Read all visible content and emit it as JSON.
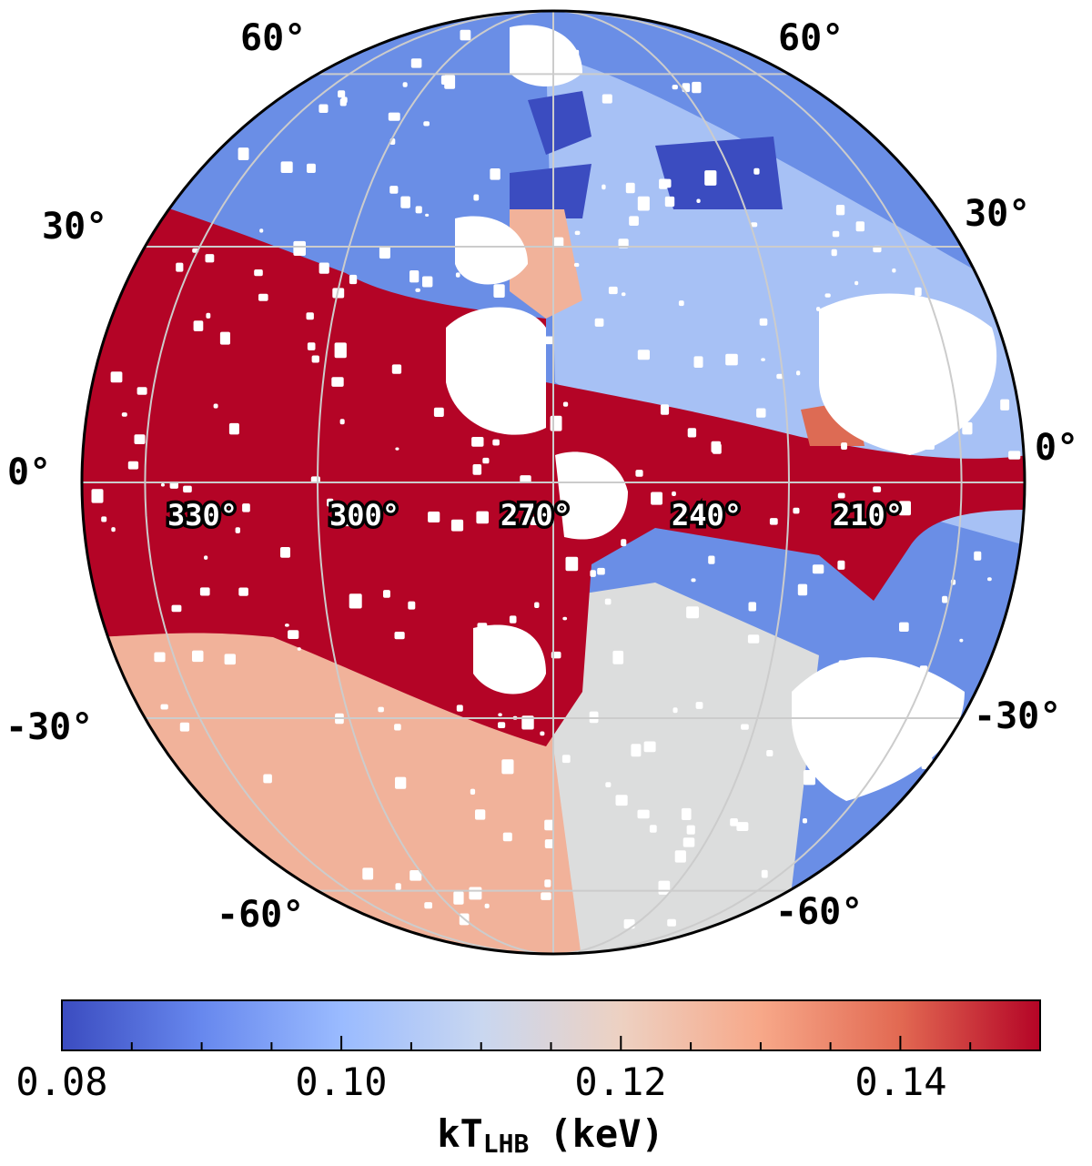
{
  "map": {
    "projection": "orthographic",
    "center_longitude_label": "270°",
    "colors": {
      "very_low": "#3b4cc0",
      "low": "#6a8ee6",
      "mid_low": "#a7c1f5",
      "mid": "#dcdddd",
      "mid_high": "#f1b29a",
      "high": "#dd6b54",
      "very_high": "#b40426",
      "masked": "#ffffff",
      "grid": "#cccccc",
      "outline": "#000000"
    },
    "latitude_labels_left": [
      "60°",
      "30°",
      "0°",
      "-30°",
      "-60°"
    ],
    "latitude_labels_right": [
      "60°",
      "30°",
      "0°",
      "-30°",
      "-60°"
    ],
    "longitude_labels": [
      "330°",
      "300°",
      "270°",
      "240°",
      "210°"
    ]
  },
  "colorbar": {
    "min": 0.08,
    "max": 0.15,
    "tick_labels": [
      "0.08",
      "0.10",
      "0.12",
      "0.14"
    ],
    "title_main": "kT",
    "title_sub": "LHB",
    "title_unit": "(keV)",
    "colormap": "coolwarm",
    "gradient_stops": [
      "#3b4cc0",
      "#6788ee",
      "#9abbff",
      "#c9d7f0",
      "#edd1c2",
      "#f7a889",
      "#e26952",
      "#b40426"
    ]
  }
}
